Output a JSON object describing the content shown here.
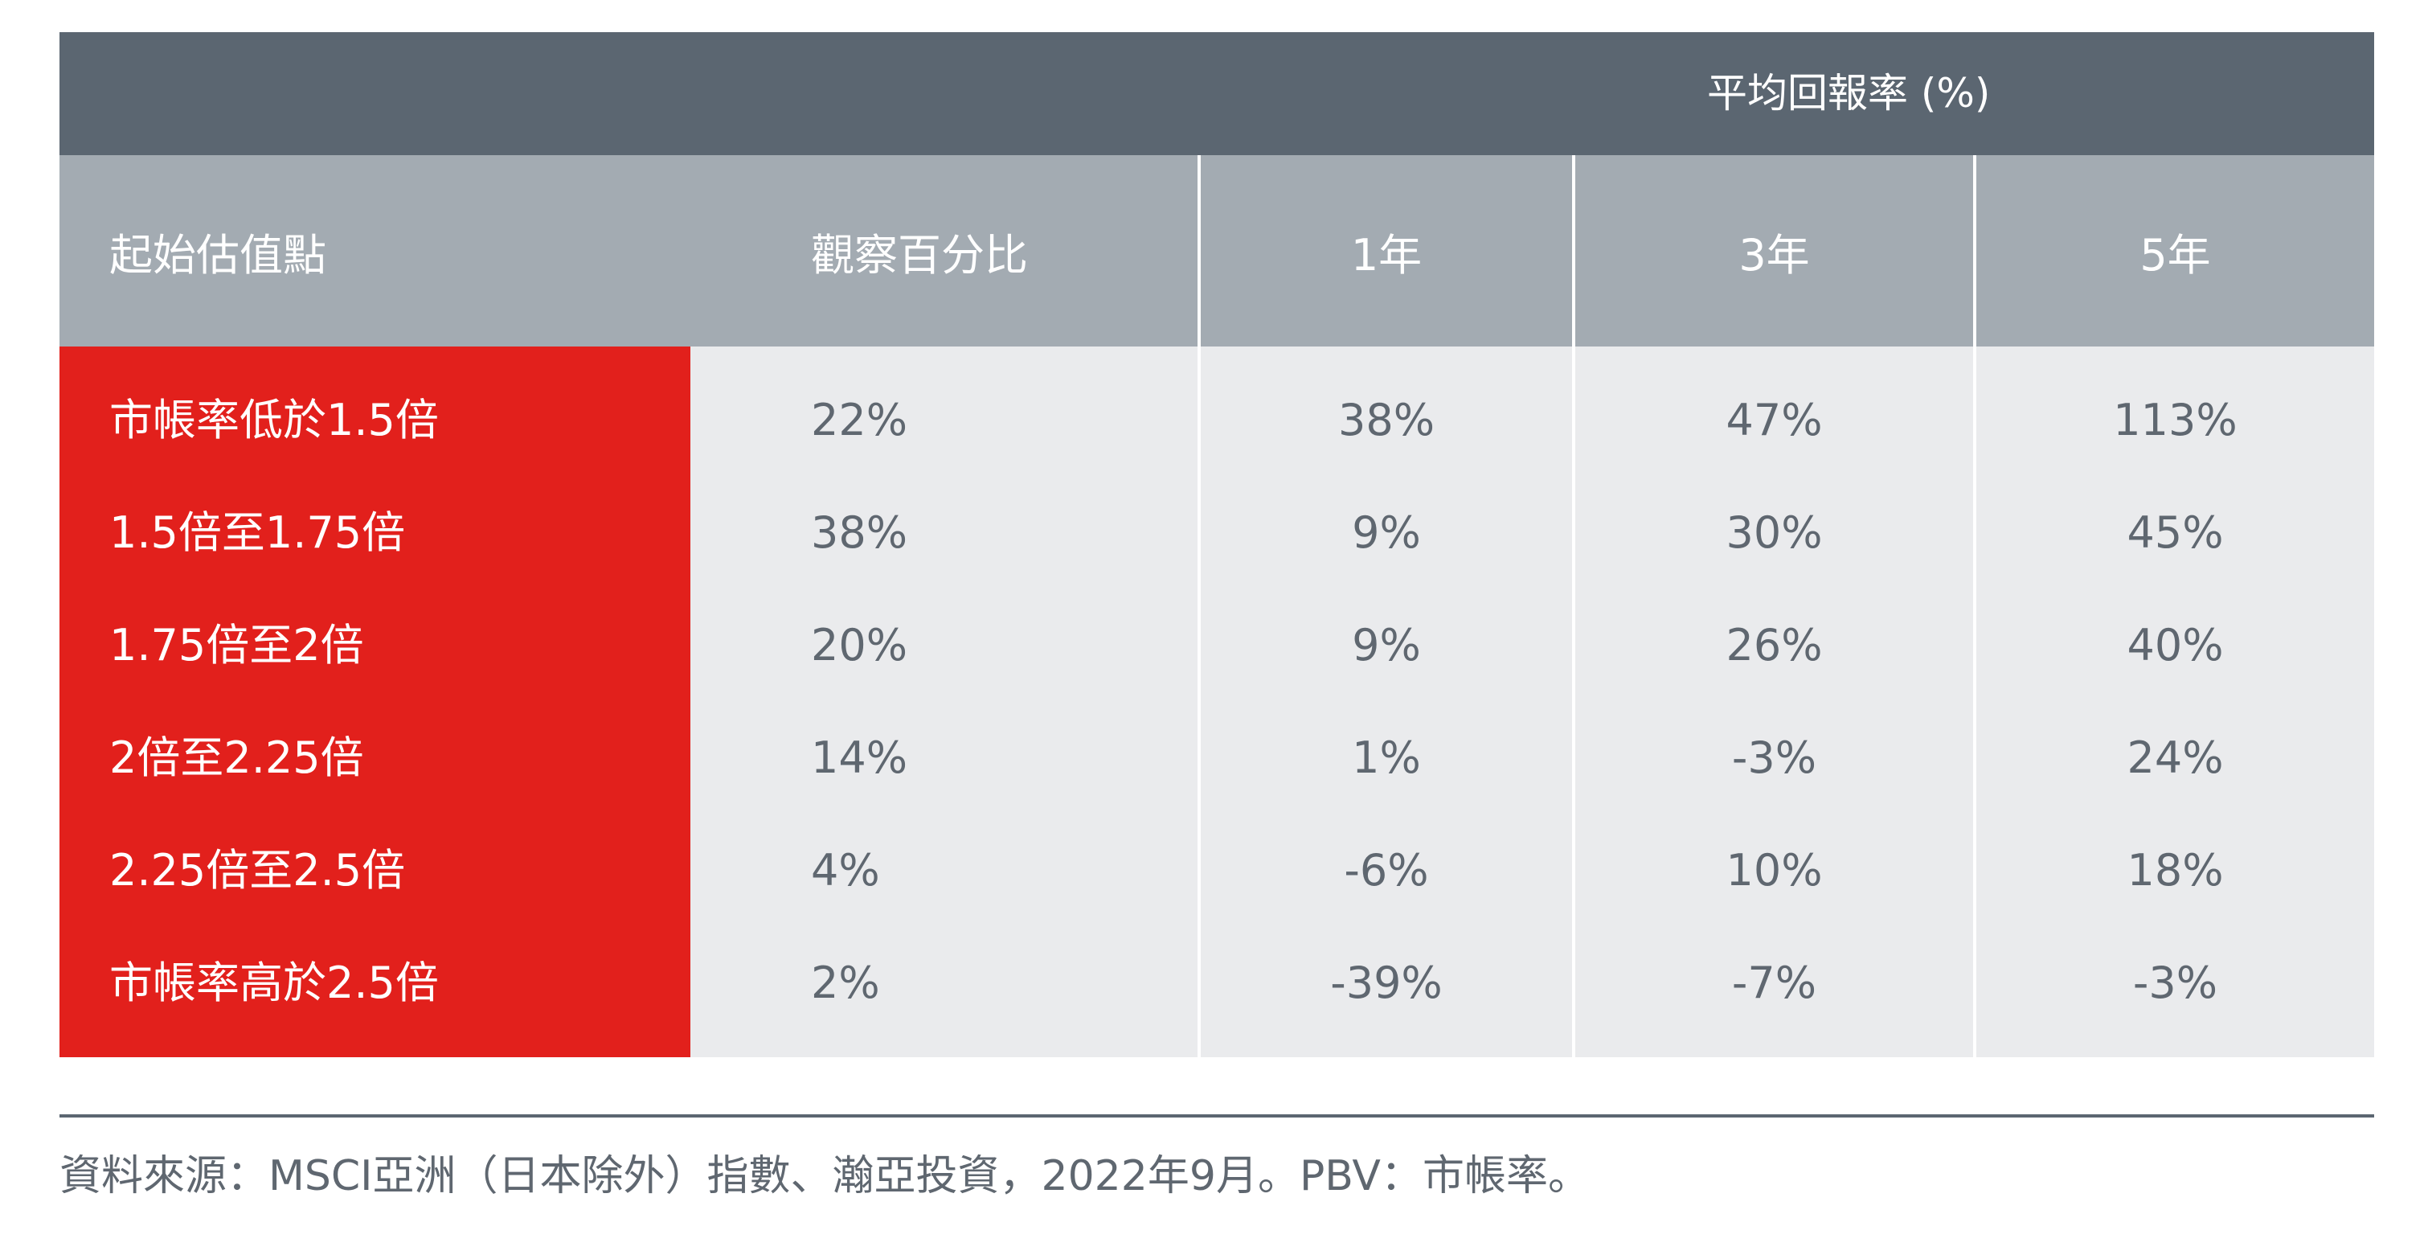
{
  "header": {
    "group_title": "平均回報率 (%)"
  },
  "columns": [
    "起始估值點",
    "觀察百分比",
    "1年",
    "3年",
    "5年"
  ],
  "rows": [
    {
      "label": "市帳率低於1.5倍",
      "pct": "22%",
      "y1": "38%",
      "y3": "47%",
      "y5": "113%"
    },
    {
      "label": "1.5倍至1.75倍",
      "pct": "38%",
      "y1": "9%",
      "y3": "30%",
      "y5": "45%"
    },
    {
      "label": "1.75倍至2倍",
      "pct": "20%",
      "y1": "9%",
      "y3": "26%",
      "y5": "40%"
    },
    {
      "label": "2倍至2.25倍",
      "pct": "14%",
      "y1": "1%",
      "y3": "-3%",
      "y5": "24%"
    },
    {
      "label": "2.25倍至2.5倍",
      "pct": "4%",
      "y1": "-6%",
      "y3": "10%",
      "y5": "18%"
    },
    {
      "label": "市帳率高於2.5倍",
      "pct": "2%",
      "y1": "-39%",
      "y3": "-7%",
      "y5": "-3%"
    }
  ],
  "footer": {
    "source": "資料來源：MSCI亞洲（日本除外）指數、瀚亞投資，2022年9月。PBV：市帳率。"
  },
  "colors": {
    "header_dark": "#5b6671",
    "header_light": "#a3abb2",
    "label_column": "#e2201c",
    "body": "#eaebed",
    "text": "#5f6770"
  }
}
